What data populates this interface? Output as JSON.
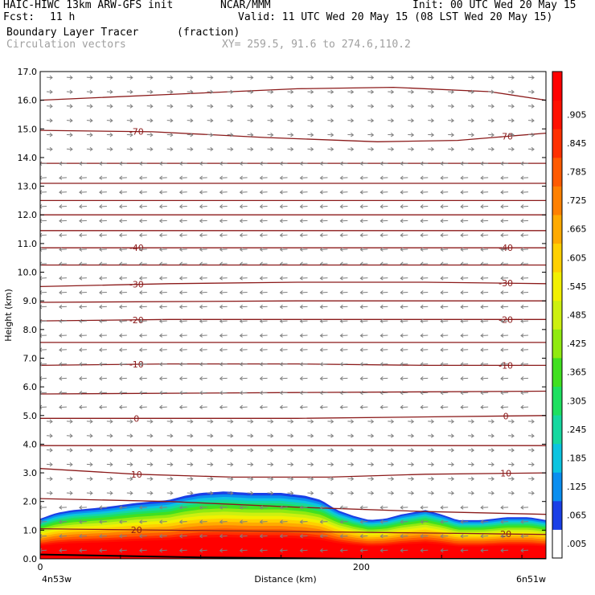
{
  "header": {
    "model": "HAIC-HIWC 13km ARW-GFS init",
    "org": "NCAR/MMM",
    "init": "Init: 00 UTC Wed 20 May 15",
    "fcst_label": "Fcst:",
    "fcst_value": "11 h",
    "valid": "Valid: 11 UTC Wed 20 May 15 (08 LST Wed 20 May 15)",
    "field": "Boundary Layer Tracer",
    "field_units": "(fraction)",
    "overlay": "Circulation vectors",
    "xy": "XY= 259.5, 91.6 to 274.6,110.2"
  },
  "chart_data": {
    "type": "heatmap",
    "title": "Boundary Layer Tracer",
    "units": "(fraction)",
    "xlabel": "Distance (km)",
    "ylabel": "Height (km)",
    "xlim": [
      0,
      315
    ],
    "ylim": [
      0,
      17
    ],
    "x_ticks": [
      0,
      200
    ],
    "x_end_labels": [
      "4n53w",
      "6n51w"
    ],
    "y_ticks": [
      "0.0",
      "1.0",
      "2.0",
      "3.0",
      "4.0",
      "5.0",
      "6.0",
      "7.0",
      "8.0",
      "9.0",
      "10.0",
      "11.0",
      "12.0",
      "13.0",
      "14.0",
      "15.0",
      "16.0",
      "17.0"
    ],
    "colorbar": {
      "labels": [
        ".005",
        ".065",
        ".125",
        ".185",
        ".245",
        ".305",
        ".365",
        ".425",
        ".485",
        ".545",
        ".605",
        ".665",
        ".725",
        ".785",
        ".845",
        ".905"
      ],
      "colors": [
        "#ffffff",
        "#1a3fe6",
        "#0a8ef0",
        "#0cc4e0",
        "#16d8a0",
        "#1ee060",
        "#40e020",
        "#90ea10",
        "#cdf010",
        "#f2f000",
        "#ffd000",
        "#ffaa00",
        "#ff8000",
        "#ff5a00",
        "#ff3000",
        "#ff1000",
        "#ff0000"
      ]
    },
    "boundary_layer_top_km": [
      [
        0,
        1.4
      ],
      [
        10,
        1.6
      ],
      [
        20,
        1.7
      ],
      [
        40,
        1.8
      ],
      [
        60,
        1.95
      ],
      [
        80,
        2.05
      ],
      [
        90,
        2.2
      ],
      [
        100,
        2.3
      ],
      [
        115,
        2.35
      ],
      [
        130,
        2.3
      ],
      [
        150,
        2.3
      ],
      [
        165,
        2.2
      ],
      [
        175,
        2.05
      ],
      [
        185,
        1.7
      ],
      [
        195,
        1.5
      ],
      [
        205,
        1.35
      ],
      [
        215,
        1.4
      ],
      [
        225,
        1.55
      ],
      [
        240,
        1.7
      ],
      [
        250,
        1.55
      ],
      [
        260,
        1.35
      ],
      [
        275,
        1.35
      ],
      [
        290,
        1.45
      ],
      [
        305,
        1.45
      ],
      [
        315,
        1.35
      ]
    ],
    "temperature_contours_c": [
      {
        "label": "20",
        "points": [
          [
            0,
            1.05
          ],
          [
            80,
            1.0
          ],
          [
            160,
            0.95
          ],
          [
            240,
            0.9
          ],
          [
            315,
            0.85
          ]
        ]
      },
      {
        "label": "10",
        "points": [
          [
            0,
            3.15
          ],
          [
            60,
            2.95
          ],
          [
            120,
            2.85
          ],
          [
            180,
            2.85
          ],
          [
            240,
            2.95
          ],
          [
            315,
            3.0
          ]
        ]
      },
      {
        "label": "0",
        "points": [
          [
            0,
            4.9
          ],
          [
            80,
            4.9
          ],
          [
            160,
            4.9
          ],
          [
            240,
            4.95
          ],
          [
            315,
            5.0
          ]
        ]
      },
      {
        "label": "-10",
        "points": [
          [
            0,
            6.75
          ],
          [
            80,
            6.8
          ],
          [
            160,
            6.8
          ],
          [
            240,
            6.75
          ],
          [
            315,
            6.75
          ]
        ]
      },
      {
        "label": "-20",
        "points": [
          [
            0,
            8.3
          ],
          [
            80,
            8.35
          ],
          [
            160,
            8.35
          ],
          [
            240,
            8.35
          ],
          [
            315,
            8.35
          ]
        ]
      },
      {
        "label": "-30",
        "points": [
          [
            0,
            9.5
          ],
          [
            80,
            9.6
          ],
          [
            160,
            9.65
          ],
          [
            240,
            9.65
          ],
          [
            315,
            9.6
          ]
        ]
      },
      {
        "label": "-40",
        "points": [
          [
            0,
            10.85
          ],
          [
            80,
            10.85
          ],
          [
            160,
            10.85
          ],
          [
            240,
            10.85
          ],
          [
            315,
            10.85
          ]
        ]
      },
      {
        "label": "-70",
        "points": [
          [
            0,
            14.95
          ],
          [
            70,
            14.9
          ],
          [
            140,
            14.7
          ],
          [
            210,
            14.55
          ],
          [
            260,
            14.6
          ],
          [
            315,
            14.85
          ]
        ]
      },
      {
        "label": "",
        "points": [
          [
            0,
            2.1
          ],
          [
            80,
            2.0
          ],
          [
            160,
            1.8
          ],
          [
            240,
            1.65
          ],
          [
            315,
            1.55
          ]
        ]
      },
      {
        "label": "",
        "points": [
          [
            0,
            3.95
          ],
          [
            315,
            3.95
          ]
        ]
      },
      {
        "label": "",
        "points": [
          [
            0,
            5.75
          ],
          [
            160,
            5.8
          ],
          [
            315,
            5.85
          ]
        ]
      },
      {
        "label": "",
        "points": [
          [
            0,
            7.55
          ],
          [
            315,
            7.55
          ]
        ]
      },
      {
        "label": "",
        "points": [
          [
            0,
            8.95
          ],
          [
            160,
            9.0
          ],
          [
            315,
            9.0
          ]
        ]
      },
      {
        "label": "",
        "points": [
          [
            0,
            10.25
          ],
          [
            315,
            10.25
          ]
        ]
      },
      {
        "label": "",
        "points": [
          [
            0,
            11.45
          ],
          [
            315,
            11.45
          ]
        ]
      },
      {
        "label": "",
        "points": [
          [
            0,
            12.0
          ],
          [
            315,
            12.0
          ]
        ]
      },
      {
        "label": "",
        "points": [
          [
            0,
            12.5
          ],
          [
            315,
            12.5
          ]
        ]
      },
      {
        "label": "",
        "points": [
          [
            0,
            13.1
          ],
          [
            315,
            13.1
          ]
        ]
      },
      {
        "label": "",
        "points": [
          [
            0,
            13.8
          ],
          [
            315,
            13.8
          ]
        ]
      },
      {
        "label": "",
        "points": [
          [
            0,
            16.0
          ],
          [
            80,
            16.2
          ],
          [
            160,
            16.4
          ],
          [
            220,
            16.45
          ],
          [
            280,
            16.3
          ],
          [
            315,
            16.0
          ]
        ]
      }
    ],
    "vector_zones": [
      {
        "zmin": 0.0,
        "zmax": 2.3,
        "dir": "west"
      },
      {
        "zmin": 2.3,
        "zmax": 5.0,
        "dir": "east"
      },
      {
        "zmin": 5.0,
        "zmax": 14.2,
        "dir": "west"
      },
      {
        "zmin": 14.2,
        "zmax": 17.0,
        "dir": "east"
      }
    ]
  },
  "colors": {
    "contour": "#8b1a1a",
    "vector": "#808080"
  }
}
